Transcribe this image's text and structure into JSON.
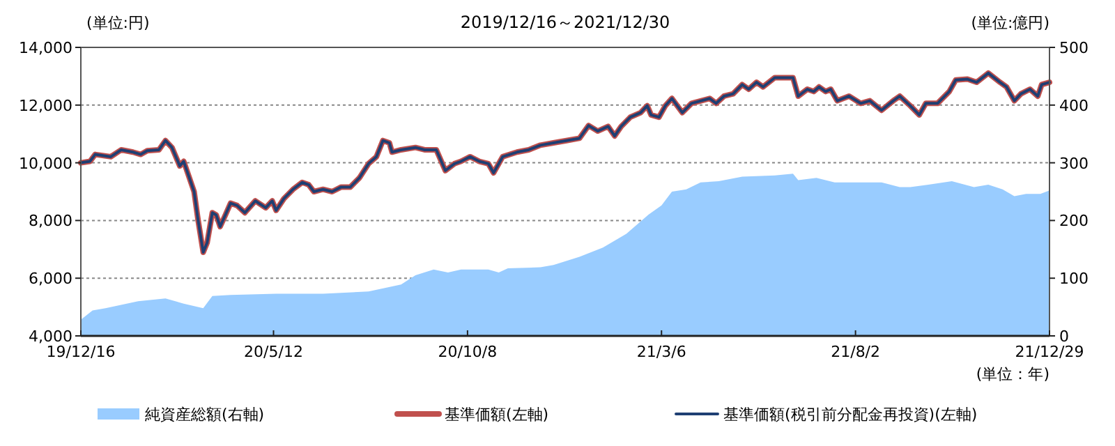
{
  "chart_data": {
    "type": "line",
    "title": "2019/12/16～2021/12/30",
    "ylabel": "(単位:円)",
    "y2label": "(単位:億円)",
    "xlabel": "(単位：年)",
    "xlim": [
      "2019-12-16",
      "2021-12-29"
    ],
    "xticks": [
      {
        "value": "2019-12-16",
        "label": "19/12/16"
      },
      {
        "value": "2020-05-12",
        "label": "20/5/12"
      },
      {
        "value": "2020-10-08",
        "label": "20/10/8"
      },
      {
        "value": "2021-03-06",
        "label": "21/3/6"
      },
      {
        "value": "2021-08-02",
        "label": "21/8/2"
      },
      {
        "value": "2021-12-29",
        "label": "21/12/29"
      }
    ],
    "ylim": [
      4000,
      14000
    ],
    "yticks": [
      {
        "value": 4000,
        "label": "4,000"
      },
      {
        "value": 6000,
        "label": "6,000"
      },
      {
        "value": 8000,
        "label": "8,000"
      },
      {
        "value": 10000,
        "label": "10,000"
      },
      {
        "value": 12000,
        "label": "12,000"
      },
      {
        "value": 14000,
        "label": "14,000"
      }
    ],
    "y2lim": [
      0,
      500
    ],
    "y2ticks": [
      0,
      100,
      200,
      300,
      400,
      500
    ],
    "grid": "y",
    "legend": "bottom",
    "series": [
      {
        "name": "純資産総額(右軸)",
        "type": "area",
        "axis": "y2",
        "color": "#99ccff",
        "x": [
          "2019-12-16",
          "2019-12-25",
          "2020-01-04",
          "2020-01-29",
          "2020-02-19",
          "2020-03-04",
          "2020-03-19",
          "2020-03-26",
          "2020-04-09",
          "2020-05-14",
          "2020-06-19",
          "2020-07-24",
          "2020-08-18",
          "2020-08-29",
          "2020-09-12",
          "2020-09-23",
          "2020-10-03",
          "2020-10-24",
          "2020-11-01",
          "2020-11-08",
          "2020-12-03",
          "2020-12-13",
          "2020-12-16",
          "2021-01-02",
          "2021-01-20",
          "2021-02-07",
          "2021-02-24",
          "2021-03-06",
          "2021-03-14",
          "2021-03-25",
          "2021-04-05",
          "2021-04-19",
          "2021-05-07",
          "2021-06-01",
          "2021-06-15",
          "2021-06-19",
          "2021-07-03",
          "2021-07-17",
          "2021-08-04",
          "2021-08-22",
          "2021-09-05",
          "2021-09-13",
          "2021-09-27",
          "2021-10-15",
          "2021-11-01",
          "2021-11-12",
          "2021-11-23",
          "2021-12-02",
          "2021-12-11",
          "2021-12-22",
          "2021-12-29"
        ],
        "values": [
          28,
          44,
          48,
          60,
          65,
          56,
          48,
          69,
          71,
          73,
          73,
          77,
          89,
          105,
          115,
          110,
          115,
          115,
          110,
          117,
          119,
          123,
          125,
          137,
          153,
          177,
          210,
          226,
          250,
          254,
          266,
          268,
          276,
          278,
          281,
          270,
          274,
          266,
          266,
          266,
          258,
          258,
          262,
          268,
          258,
          262,
          254,
          242,
          246,
          246,
          252
        ]
      },
      {
        "name": "基準価額(左軸)",
        "color": "#c0504d",
        "x": [
          "2019-12-16",
          "2019-12-23",
          "2019-12-27",
          "2020-01-08",
          "2020-01-16",
          "2020-01-25",
          "2020-01-31",
          "2020-02-05",
          "2020-02-14",
          "2020-02-19",
          "2020-02-24",
          "2020-03-01",
          "2020-03-04",
          "2020-03-12",
          "2020-03-15",
          "2020-03-19",
          "2020-03-22",
          "2020-03-26",
          "2020-03-29",
          "2020-04-01",
          "2020-04-05",
          "2020-04-09",
          "2020-04-14",
          "2020-04-20",
          "2020-04-28",
          "2020-05-06",
          "2020-05-11",
          "2020-05-14",
          "2020-05-20",
          "2020-05-27",
          "2020-06-03",
          "2020-06-08",
          "2020-06-12",
          "2020-06-19",
          "2020-06-26",
          "2020-07-03",
          "2020-07-10",
          "2020-07-17",
          "2020-07-24",
          "2020-07-30",
          "2020-08-04",
          "2020-08-09",
          "2020-08-11",
          "2020-08-18",
          "2020-08-29",
          "2020-09-05",
          "2020-09-14",
          "2020-09-21",
          "2020-09-28",
          "2020-10-03",
          "2020-10-10",
          "2020-10-17",
          "2020-10-24",
          "2020-10-28",
          "2020-11-04",
          "2020-11-15",
          "2020-11-24",
          "2020-12-03",
          "2020-12-13",
          "2020-12-23",
          "2021-01-02",
          "2021-01-09",
          "2021-01-16",
          "2021-01-24",
          "2021-01-29",
          "2021-02-03",
          "2021-02-10",
          "2021-02-18",
          "2021-02-23",
          "2021-02-26",
          "2021-03-04",
          "2021-03-09",
          "2021-03-14",
          "2021-03-22",
          "2021-03-29",
          "2021-04-12",
          "2021-04-17",
          "2021-04-23",
          "2021-04-30",
          "2021-05-07",
          "2021-05-12",
          "2021-05-18",
          "2021-05-23",
          "2021-06-01",
          "2021-06-15",
          "2021-06-19",
          "2021-06-26",
          "2021-07-01",
          "2021-07-05",
          "2021-07-10",
          "2021-07-14",
          "2021-07-19",
          "2021-07-28",
          "2021-08-06",
          "2021-08-13",
          "2021-08-22",
          "2021-08-31",
          "2021-09-05",
          "2021-09-13",
          "2021-09-20",
          "2021-09-25",
          "2021-10-04",
          "2021-10-13",
          "2021-10-18",
          "2021-10-27",
          "2021-11-03",
          "2021-11-12",
          "2021-11-21",
          "2021-11-26",
          "2021-12-02",
          "2021-12-07",
          "2021-12-14",
          "2021-12-20",
          "2021-12-23",
          "2021-12-29"
        ],
        "values": [
          10000,
          10050,
          10290,
          10210,
          10450,
          10370,
          10290,
          10420,
          10450,
          10770,
          10530,
          9890,
          10050,
          9000,
          8030,
          6900,
          7230,
          8270,
          8190,
          7790,
          8190,
          8600,
          8520,
          8270,
          8680,
          8440,
          8680,
          8350,
          8760,
          9080,
          9320,
          9240,
          9000,
          9080,
          9000,
          9160,
          9160,
          9480,
          9970,
          10210,
          10770,
          10690,
          10370,
          10450,
          10530,
          10450,
          10450,
          9730,
          9970,
          10050,
          10210,
          10050,
          9970,
          9650,
          10210,
          10370,
          10450,
          10610,
          10690,
          10770,
          10850,
          11290,
          11100,
          11260,
          10930,
          11260,
          11580,
          11740,
          11980,
          11660,
          11580,
          11980,
          12230,
          11740,
          12060,
          12230,
          12060,
          12310,
          12390,
          12710,
          12550,
          12790,
          12630,
          12950,
          12950,
          12310,
          12550,
          12470,
          12630,
          12470,
          12550,
          12150,
          12310,
          12060,
          12150,
          11820,
          12150,
          12310,
          11980,
          11660,
          12060,
          12060,
          12470,
          12870,
          12900,
          12790,
          13110,
          12790,
          12630,
          12150,
          12390,
          12550,
          12310,
          12710,
          12790
        ]
      },
      {
        "name": "基準価額(税引前分配金再投資)(左軸)",
        "color": "#1f3f73",
        "x": [
          "2019-12-16",
          "2019-12-23",
          "2019-12-27",
          "2020-01-08",
          "2020-01-16",
          "2020-01-25",
          "2020-01-31",
          "2020-02-05",
          "2020-02-14",
          "2020-02-19",
          "2020-02-24",
          "2020-03-01",
          "2020-03-04",
          "2020-03-12",
          "2020-03-15",
          "2020-03-19",
          "2020-03-22",
          "2020-03-26",
          "2020-03-29",
          "2020-04-01",
          "2020-04-05",
          "2020-04-09",
          "2020-04-14",
          "2020-04-20",
          "2020-04-28",
          "2020-05-06",
          "2020-05-11",
          "2020-05-14",
          "2020-05-20",
          "2020-05-27",
          "2020-06-03",
          "2020-06-08",
          "2020-06-12",
          "2020-06-19",
          "2020-06-26",
          "2020-07-03",
          "2020-07-10",
          "2020-07-17",
          "2020-07-24",
          "2020-07-30",
          "2020-08-04",
          "2020-08-09",
          "2020-08-11",
          "2020-08-18",
          "2020-08-29",
          "2020-09-05",
          "2020-09-14",
          "2020-09-21",
          "2020-09-28",
          "2020-10-03",
          "2020-10-10",
          "2020-10-17",
          "2020-10-24",
          "2020-10-28",
          "2020-11-04",
          "2020-11-15",
          "2020-11-24",
          "2020-12-03",
          "2020-12-13",
          "2020-12-23",
          "2021-01-02",
          "2021-01-09",
          "2021-01-16",
          "2021-01-24",
          "2021-01-29",
          "2021-02-03",
          "2021-02-10",
          "2021-02-18",
          "2021-02-23",
          "2021-02-26",
          "2021-03-04",
          "2021-03-09",
          "2021-03-14",
          "2021-03-22",
          "2021-03-29",
          "2021-04-12",
          "2021-04-17",
          "2021-04-23",
          "2021-04-30",
          "2021-05-07",
          "2021-05-12",
          "2021-05-18",
          "2021-05-23",
          "2021-06-01",
          "2021-06-15",
          "2021-06-19",
          "2021-06-26",
          "2021-07-01",
          "2021-07-05",
          "2021-07-10",
          "2021-07-14",
          "2021-07-19",
          "2021-07-28",
          "2021-08-06",
          "2021-08-13",
          "2021-08-22",
          "2021-08-31",
          "2021-09-05",
          "2021-09-13",
          "2021-09-20",
          "2021-09-25",
          "2021-10-04",
          "2021-10-13",
          "2021-10-18",
          "2021-10-27",
          "2021-11-03",
          "2021-11-12",
          "2021-11-21",
          "2021-11-26",
          "2021-12-02",
          "2021-12-07",
          "2021-12-14",
          "2021-12-20",
          "2021-12-23",
          "2021-12-29"
        ],
        "values": [
          10000,
          10050,
          10290,
          10210,
          10450,
          10370,
          10290,
          10420,
          10450,
          10770,
          10530,
          9890,
          10050,
          9000,
          8030,
          6900,
          7230,
          8270,
          8190,
          7790,
          8190,
          8600,
          8520,
          8270,
          8680,
          8440,
          8680,
          8350,
          8760,
          9080,
          9320,
          9240,
          9000,
          9080,
          9000,
          9160,
          9160,
          9480,
          9970,
          10210,
          10770,
          10690,
          10370,
          10450,
          10530,
          10450,
          10450,
          9730,
          9970,
          10050,
          10210,
          10050,
          9970,
          9650,
          10210,
          10370,
          10450,
          10610,
          10690,
          10770,
          10850,
          11290,
          11100,
          11260,
          10930,
          11260,
          11580,
          11740,
          11980,
          11660,
          11580,
          11980,
          12230,
          11740,
          12060,
          12230,
          12060,
          12310,
          12390,
          12710,
          12550,
          12790,
          12630,
          12950,
          12950,
          12310,
          12550,
          12470,
          12630,
          12470,
          12550,
          12150,
          12310,
          12060,
          12150,
          11820,
          12150,
          12310,
          11980,
          11660,
          12060,
          12060,
          12470,
          12870,
          12900,
          12790,
          13110,
          12790,
          12630,
          12150,
          12390,
          12550,
          12310,
          12710,
          12790
        ]
      }
    ]
  }
}
